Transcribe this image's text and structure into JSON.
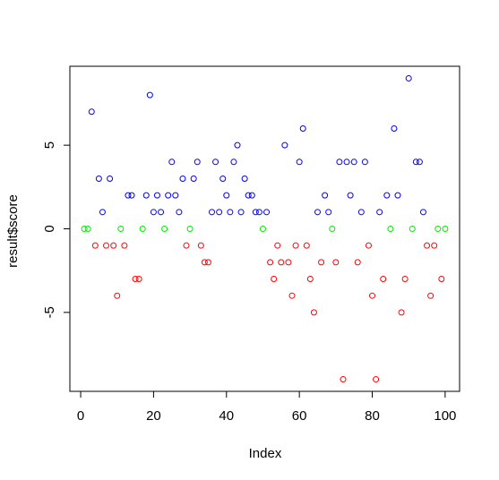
{
  "chart_data": {
    "type": "scatter",
    "xlabel": "Index",
    "ylabel": "result$score",
    "xlim": [
      -2.96,
      103.96
    ],
    "ylim": [
      -9.72,
      9.72
    ],
    "xticks": [
      0,
      20,
      40,
      60,
      80,
      100
    ],
    "yticks": [
      -5,
      0,
      5
    ],
    "series": [
      {
        "color": "#0000ff",
        "x": [
          3,
          5,
          6,
          8,
          13,
          14,
          18,
          19,
          20,
          21,
          22,
          24,
          25,
          26,
          27,
          28,
          31,
          32,
          36,
          37,
          38,
          39,
          40,
          41,
          42,
          43,
          44,
          45,
          46,
          47,
          48,
          49,
          51,
          56,
          60,
          61,
          65,
          67,
          68,
          71,
          73,
          74,
          75,
          77,
          78,
          82,
          84,
          86,
          87,
          90,
          92,
          93,
          94
        ],
        "values": [
          7,
          3,
          1,
          3,
          2,
          2,
          2,
          8,
          1,
          2,
          1,
          2,
          4,
          2,
          1,
          3,
          3,
          4,
          1,
          4,
          1,
          3,
          2,
          1,
          4,
          5,
          1,
          3,
          2,
          2,
          1,
          1,
          1,
          5,
          4,
          6,
          1,
          2,
          1,
          4,
          4,
          2,
          4,
          1,
          4,
          1,
          2,
          6,
          2,
          9,
          4,
          4,
          1
        ]
      },
      {
        "color": "#ff0000",
        "x": [
          4,
          7,
          9,
          10,
          12,
          15,
          16,
          29,
          33,
          34,
          35,
          52,
          53,
          54,
          55,
          57,
          58,
          59,
          62,
          63,
          64,
          66,
          70,
          72,
          76,
          79,
          80,
          81,
          83,
          88,
          89,
          95,
          96,
          97,
          99
        ],
        "values": [
          -1,
          -1,
          -1,
          -4,
          -1,
          -3,
          -3,
          -1,
          -1,
          -2,
          -2,
          -2,
          -3,
          -1,
          -2,
          -2,
          -4,
          -1,
          -1,
          -3,
          -5,
          -2,
          -2,
          -9,
          -2,
          -1,
          -4,
          -9,
          -3,
          -5,
          -3,
          -1,
          -4,
          -1,
          -3
        ]
      },
      {
        "color": "#00ee00",
        "x": [
          1,
          2,
          11,
          17,
          23,
          30,
          50,
          69,
          85,
          91,
          98,
          100
        ],
        "values": [
          0,
          0,
          0,
          0,
          0,
          0,
          0,
          0,
          0,
          0,
          0,
          0
        ]
      }
    ]
  }
}
